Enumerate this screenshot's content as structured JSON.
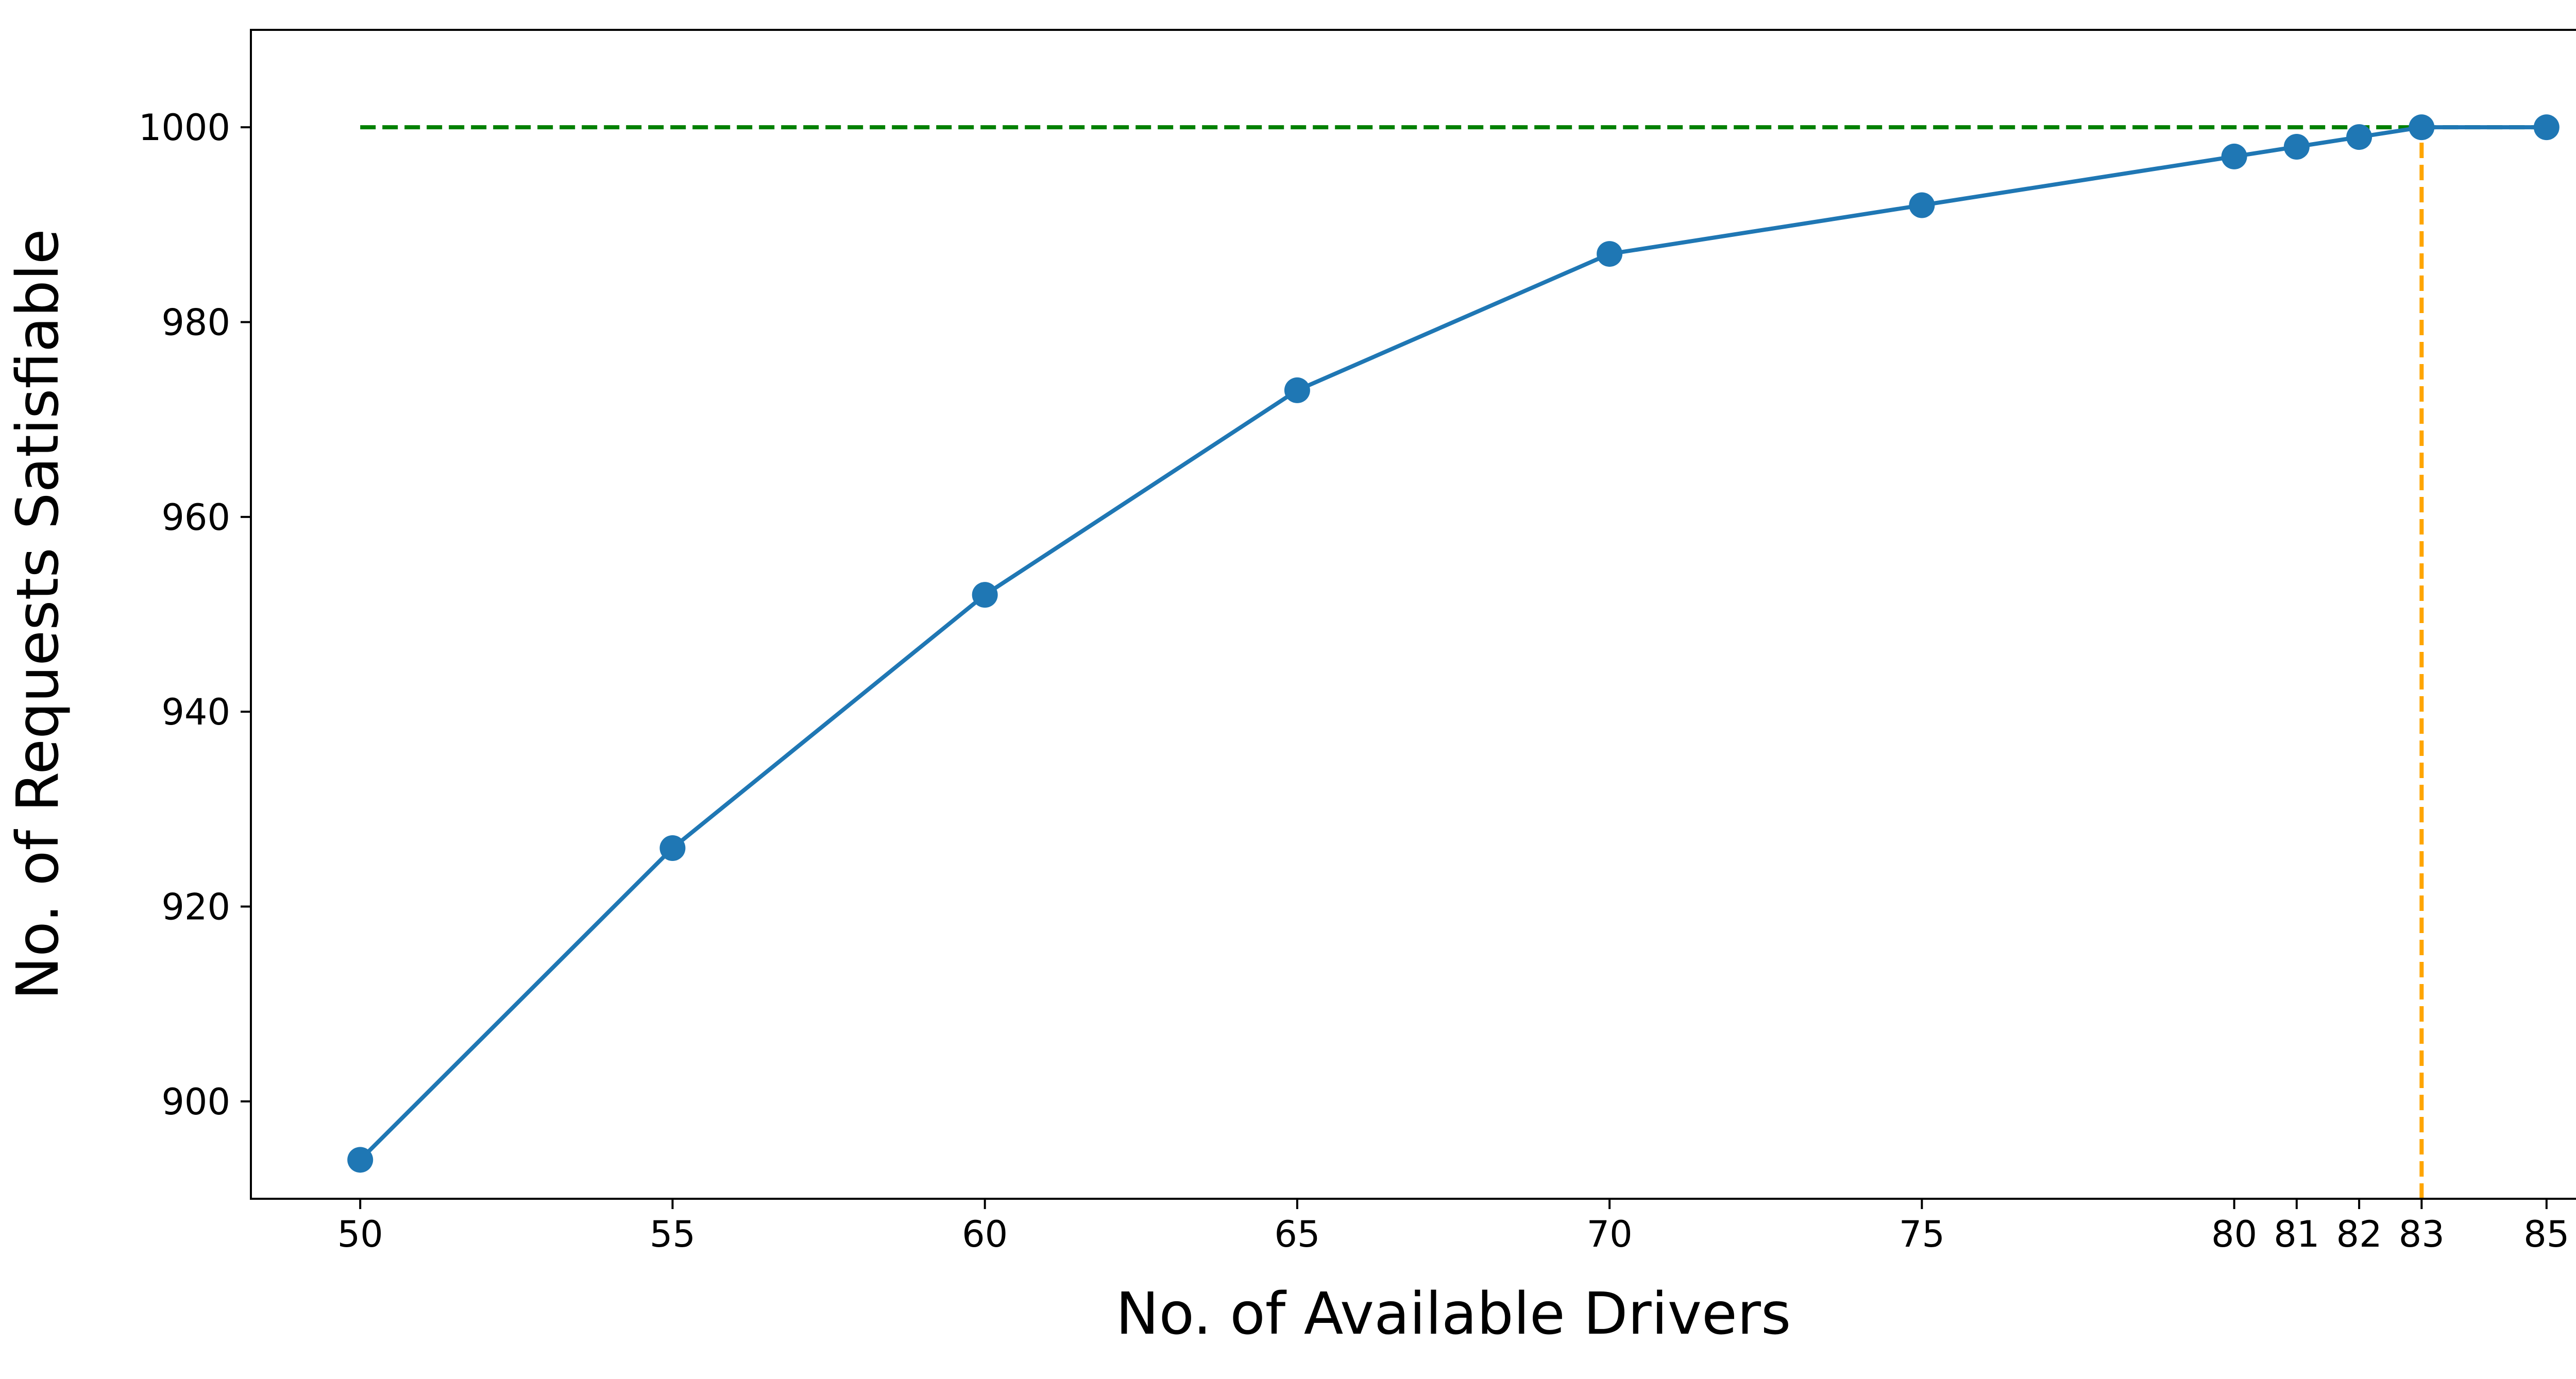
{
  "chart_data": {
    "type": "line",
    "title": "",
    "xlabel": "No. of Available Drivers",
    "ylabel": "No. of Requests Satisfiable",
    "x_ticks": [
      50,
      55,
      60,
      65,
      70,
      75,
      80,
      81,
      82,
      83,
      85
    ],
    "y_ticks": [
      900,
      920,
      940,
      960,
      980,
      1000
    ],
    "xlim": [
      48.25,
      86.75
    ],
    "ylim": [
      890,
      1010
    ],
    "grid": false,
    "legend": "none",
    "series": [
      {
        "x": [
          50,
          55,
          60,
          65,
          70,
          75,
          80,
          81,
          82,
          83,
          85
        ],
        "y": [
          894,
          926,
          952,
          973,
          987,
          992,
          997,
          998,
          999,
          1000,
          1000
        ],
        "color": "#1f77b4",
        "marker": "circle",
        "line_style": "solid"
      }
    ],
    "reference_lines": [
      {
        "orientation": "horizontal",
        "y": 1000,
        "x_from": 50,
        "x_to": 85,
        "color": "#008000",
        "line_style": "dashed"
      },
      {
        "orientation": "vertical",
        "x": 83,
        "y_from": 890,
        "y_to": 1000,
        "color": "#ffa500",
        "line_style": "dashed"
      }
    ]
  }
}
